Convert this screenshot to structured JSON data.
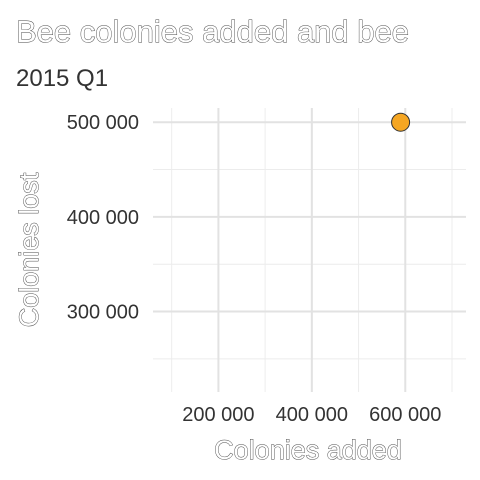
{
  "chart_data": {
    "type": "scatter",
    "title": "Bee colonies added and bee",
    "subtitle": "2015 Q1",
    "xlabel": "Colonies added",
    "ylabel": "Colonies lost",
    "x_ticks": [
      200000,
      400000,
      600000
    ],
    "x_tick_labels": [
      "200 000",
      "400 000",
      "600 000"
    ],
    "y_ticks": [
      300000,
      400000,
      500000
    ],
    "y_tick_labels": [
      "300 000",
      "400 000",
      "500 000"
    ],
    "xlim": [
      60000,
      730000
    ],
    "ylim": [
      215000,
      515000
    ],
    "grid": true,
    "legend": "none",
    "point_color": "#f5a623",
    "point_stroke": "#333333",
    "points": [
      {
        "x": 590000,
        "y": 500000
      }
    ]
  }
}
